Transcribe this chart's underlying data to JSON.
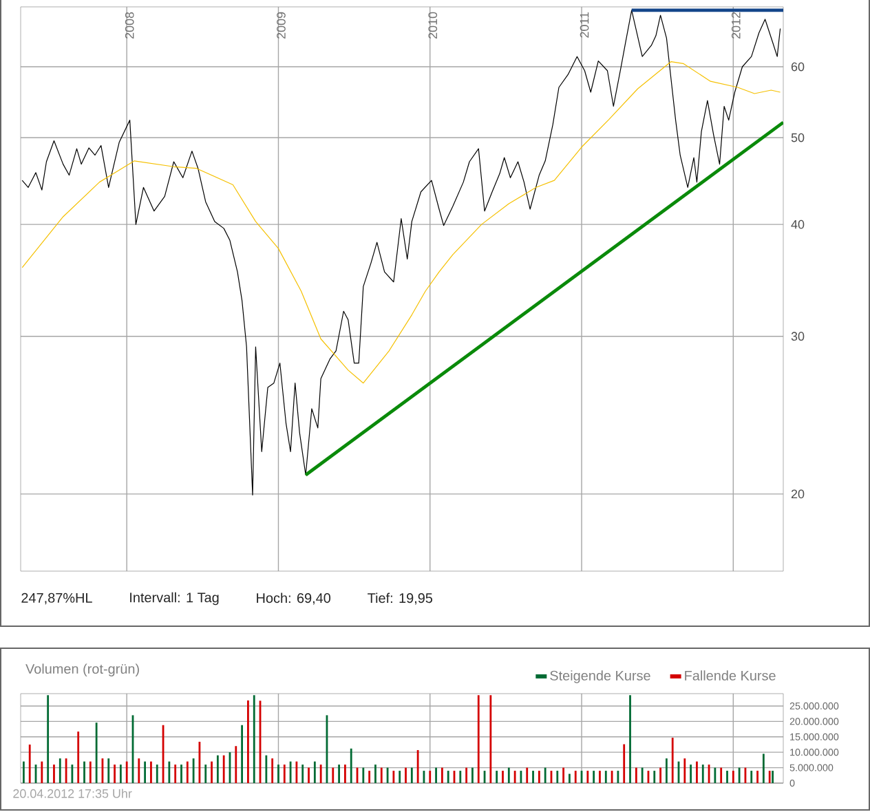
{
  "chart_data": [
    {
      "type": "line",
      "log": "y",
      "grid": true,
      "xlim": [
        2007.3,
        2012.33
      ],
      "ylim": [
        16.4,
        70
      ],
      "xticks": [
        2008,
        2009,
        2010,
        2011,
        2012
      ],
      "yticks": [
        20,
        30,
        40,
        50,
        60
      ],
      "series": [
        {
          "color": "#000000",
          "x": [
            2007.31,
            2007.35,
            2007.4,
            2007.44,
            2007.47,
            2007.52,
            2007.58,
            2007.62,
            2007.67,
            2007.7,
            2007.75,
            2007.79,
            2007.83,
            2007.88,
            2007.95,
            2008.02,
            2008.06,
            2008.11,
            2008.18,
            2008.25,
            2008.31,
            2008.37,
            2008.43,
            2008.47,
            2008.52,
            2008.58,
            2008.64,
            2008.68,
            2008.73,
            2008.76,
            2008.79,
            2008.83,
            2008.85,
            2008.89,
            2008.93,
            2008.97,
            2009.01,
            2009.05,
            2009.08,
            2009.11,
            2009.14,
            2009.18,
            2009.22,
            2009.26,
            2009.28,
            2009.34,
            2009.38,
            2009.43,
            2009.46,
            2009.5,
            2009.53,
            2009.56,
            2009.61,
            2009.65,
            2009.7,
            2009.76,
            2009.81,
            2009.85,
            2009.88,
            2009.94,
            2010.01,
            2010.06,
            2010.09,
            2010.15,
            2010.22,
            2010.26,
            2010.32,
            2010.36,
            2010.41,
            2010.46,
            2010.49,
            2010.53,
            2010.58,
            2010.62,
            2010.66,
            2010.72,
            2010.76,
            2010.81,
            2010.85,
            2010.91,
            2010.97,
            2011.02,
            2011.06,
            2011.11,
            2011.17,
            2011.21,
            2011.26,
            2011.29,
            2011.33,
            2011.4,
            2011.46,
            2011.49,
            2011.52,
            2011.56,
            2011.59,
            2011.62,
            2011.65,
            2011.7,
            2011.74,
            2011.76,
            2011.79,
            2011.83,
            2011.87,
            2011.91,
            2011.94,
            2011.97,
            2012.01,
            2012.06,
            2012.12,
            2012.17,
            2012.21,
            2012.26,
            2012.29,
            2012.31
          ],
          "values": [
            44.8,
            44.0,
            45.7,
            43.7,
            47.0,
            49.6,
            46.7,
            45.4,
            48.6,
            46.7,
            48.7,
            47.8,
            49.0,
            44.0,
            49.4,
            52.3,
            40.0,
            44.0,
            41.4,
            43.0,
            47.0,
            45.1,
            48.3,
            46.2,
            42.4,
            40.3,
            39.6,
            38.4,
            35.4,
            32.9,
            29.2,
            19.95,
            29.2,
            22.3,
            26.3,
            26.6,
            28.0,
            24.0,
            22.3,
            26.6,
            23.4,
            21.0,
            24.9,
            23.7,
            26.9,
            28.3,
            28.9,
            32.0,
            31.3,
            28.0,
            28.0,
            34.1,
            36.2,
            38.2,
            35.4,
            34.5,
            40.6,
            36.6,
            40.3,
            43.5,
            44.8,
            41.6,
            39.9,
            41.9,
            44.6,
            47.0,
            48.6,
            41.4,
            43.5,
            45.6,
            47.5,
            45.1,
            47.0,
            44.6,
            41.6,
            45.4,
            47.1,
            51.7,
            56.9,
            58.8,
            61.6,
            59.4,
            56.2,
            60.9,
            59.4,
            54.2,
            60.0,
            63.9,
            69.4,
            61.6,
            63.4,
            65.0,
            68.5,
            64.6,
            58.1,
            52.3,
            47.8,
            44.0,
            47.5,
            44.6,
            50.8,
            55.0,
            50.4,
            46.7,
            54.2,
            52.3,
            56.2,
            60.0,
            61.6,
            65.5,
            67.8,
            63.9,
            61.6,
            66.2
          ]
        },
        {
          "color": "#f5c000",
          "x": [
            2007.31,
            2007.58,
            2007.82,
            2008.05,
            2008.31,
            2008.46,
            2008.7,
            2008.85,
            2009.0,
            2009.15,
            2009.28,
            2009.46,
            2009.56,
            2009.73,
            2009.88,
            2009.97,
            2010.06,
            2010.15,
            2010.34,
            2010.52,
            2010.7,
            2010.82,
            2011.0,
            2011.18,
            2011.37,
            2011.59,
            2011.67,
            2011.85,
            2012.03,
            2012.14,
            2012.25,
            2012.31
          ],
          "values": [
            35.8,
            40.8,
            44.6,
            47.1,
            46.4,
            46.2,
            44.3,
            40.3,
            37.6,
            33.7,
            29.8,
            27.5,
            26.6,
            28.9,
            31.7,
            33.7,
            35.4,
            37.0,
            40.0,
            42.2,
            44.0,
            44.8,
            48.8,
            52.4,
            56.7,
            60.8,
            60.5,
            57.8,
            56.9,
            56.0,
            56.5,
            56.2
          ]
        },
        {
          "color": "#0a8a0a",
          "x": [
            2009.18,
            2012.33
          ],
          "values": [
            21.0,
            52.0
          ]
        },
        {
          "color": "#14468a",
          "x": [
            2011.33,
            2012.33
          ],
          "values": [
            69.4,
            69.4
          ]
        }
      ],
      "annotations": [
        "247,87%HL",
        "Intervall: 1 Tag",
        "Hoch: 69,40",
        "Tief: 19,95"
      ]
    },
    {
      "type": "bar",
      "title": "Volumen (rot-grün)",
      "grid": true,
      "legend": "top right",
      "tick_labels": "y",
      "xlim": [
        2007.3,
        2012.33
      ],
      "ylim": [
        0,
        29000000
      ],
      "xticks": [
        {
          "value": 2008,
          "label": null
        },
        {
          "value": 2009,
          "label": null
        },
        {
          "value": 2010,
          "label": null
        },
        {
          "value": 2011,
          "label": null
        },
        {
          "value": 2012,
          "label": null
        }
      ],
      "yticks": [
        0,
        {
          "value": 5000000,
          "label": "5.000.000"
        },
        {
          "value": 10000000,
          "label": "10.000.000"
        },
        {
          "value": 15000000,
          "label": "15.000.000"
        },
        {
          "value": 20000000,
          "label": "20.000.000"
        },
        {
          "value": 25000000,
          "label": "25.000.000"
        }
      ],
      "series": [
        {
          "name": "Steigende Kurse",
          "color": "#006a33",
          "x": [
            2007.32,
            2007.4,
            2007.48,
            2007.56,
            2007.64,
            2007.72,
            2007.8,
            2007.88,
            2007.96,
            2008.04,
            2008.12,
            2008.2,
            2008.28,
            2008.36,
            2008.44,
            2008.52,
            2008.6,
            2008.68,
            2008.76,
            2008.84,
            2008.92,
            2009.0,
            2009.08,
            2009.16,
            2009.24,
            2009.32,
            2009.4,
            2009.48,
            2009.56,
            2009.64,
            2009.72,
            2009.8,
            2009.88,
            2009.96,
            2010.04,
            2010.12,
            2010.2,
            2010.28,
            2010.36,
            2010.44,
            2010.52,
            2010.6,
            2010.68,
            2010.76,
            2010.84,
            2010.92,
            2011.0,
            2011.08,
            2011.16,
            2011.24,
            2011.32,
            2011.4,
            2011.48,
            2011.56,
            2011.64,
            2011.72,
            2011.8,
            2011.88,
            2011.96,
            2012.04,
            2012.12,
            2012.2,
            2012.26
          ],
          "values": [
            7000000,
            6000000,
            28500000,
            8000000,
            6000000,
            7000000,
            19600000,
            8000000,
            6000000,
            22000000,
            7000000,
            6000000,
            7000000,
            6000000,
            8000000,
            6000000,
            9000000,
            10000000,
            18800000,
            28500000,
            9000000,
            6000000,
            7000000,
            6000000,
            7000000,
            22000000,
            6000000,
            11200000,
            5000000,
            6000000,
            5000000,
            4000000,
            5000000,
            4000000,
            5000000,
            4000000,
            4000000,
            5000000,
            4000000,
            4000000,
            5000000,
            4000000,
            4000000,
            5000000,
            4000000,
            3000000,
            4000000,
            4000000,
            4000000,
            4000000,
            28500000,
            5000000,
            4000000,
            8000000,
            7000000,
            6000000,
            6000000,
            5000000,
            4000000,
            5000000,
            4000000,
            9500000,
            4000000
          ]
        },
        {
          "name": "Fallende Kurse",
          "color": "#d40000",
          "x": [
            2007.36,
            2007.44,
            2007.52,
            2007.6,
            2007.68,
            2007.76,
            2007.84,
            2007.92,
            2008.0,
            2008.08,
            2008.16,
            2008.24,
            2008.32,
            2008.4,
            2008.48,
            2008.56,
            2008.64,
            2008.72,
            2008.8,
            2008.88,
            2008.96,
            2009.04,
            2009.12,
            2009.2,
            2009.28,
            2009.36,
            2009.44,
            2009.52,
            2009.6,
            2009.68,
            2009.76,
            2009.84,
            2009.92,
            2010.0,
            2010.08,
            2010.16,
            2010.24,
            2010.32,
            2010.4,
            2010.48,
            2010.56,
            2010.64,
            2010.72,
            2010.8,
            2010.88,
            2010.96,
            2011.04,
            2011.12,
            2011.2,
            2011.28,
            2011.36,
            2011.44,
            2011.52,
            2011.6,
            2011.68,
            2011.76,
            2011.84,
            2011.92,
            2012.0,
            2012.08,
            2012.16,
            2012.24
          ],
          "values": [
            12500000,
            7000000,
            6000000,
            8000000,
            16700000,
            7000000,
            8000000,
            6000000,
            7000000,
            8000000,
            7000000,
            18800000,
            6000000,
            7000000,
            13400000,
            7000000,
            9000000,
            12000000,
            26800000,
            26700000,
            8000000,
            6000000,
            7000000,
            5000000,
            6000000,
            5000000,
            6000000,
            5000000,
            4000000,
            5000000,
            4000000,
            5000000,
            10700000,
            4000000,
            5000000,
            4000000,
            5000000,
            28500000,
            28500000,
            4000000,
            4000000,
            5000000,
            4000000,
            4000000,
            5000000,
            4000000,
            4000000,
            4000000,
            4000000,
            12600000,
            5000000,
            4000000,
            5000000,
            14700000,
            8000000,
            7000000,
            6000000,
            5000000,
            4000000,
            5000000,
            4000000,
            4000000
          ]
        }
      ],
      "annotations": [
        "20.04.2012 17:35 Uhr"
      ]
    }
  ]
}
